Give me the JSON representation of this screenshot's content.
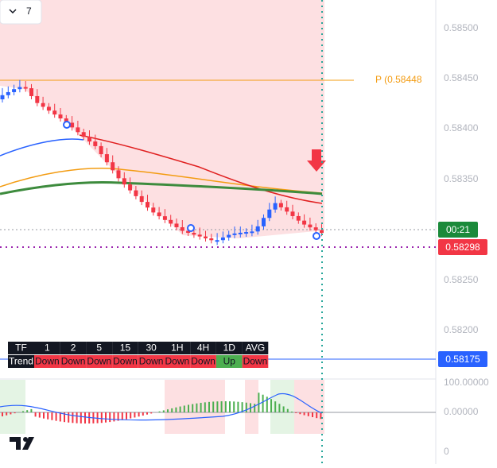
{
  "toolbar": {
    "interval": "7"
  },
  "price_axis": {
    "ticks": [
      "0.58500",
      "0.58450",
      "0.58400",
      "0.58350",
      "0.58250",
      "0.58200"
    ]
  },
  "pivot_label": "P (0.58448",
  "countdown": "00:21",
  "price_labels": [
    "0.58298",
    "0.58175"
  ],
  "trend_table": {
    "header": [
      "TF",
      "1",
      "2",
      "5",
      "15",
      "30",
      "1H",
      "4H",
      "1D",
      "AVG"
    ],
    "row": [
      "Trend",
      "Down",
      "Down",
      "Down",
      "Down",
      "Down",
      "Down",
      "Down",
      "Up",
      "Down"
    ]
  },
  "oscillator_axis": {
    "ticks": [
      "100.00000",
      "0.00000",
      "0"
    ]
  }
}
